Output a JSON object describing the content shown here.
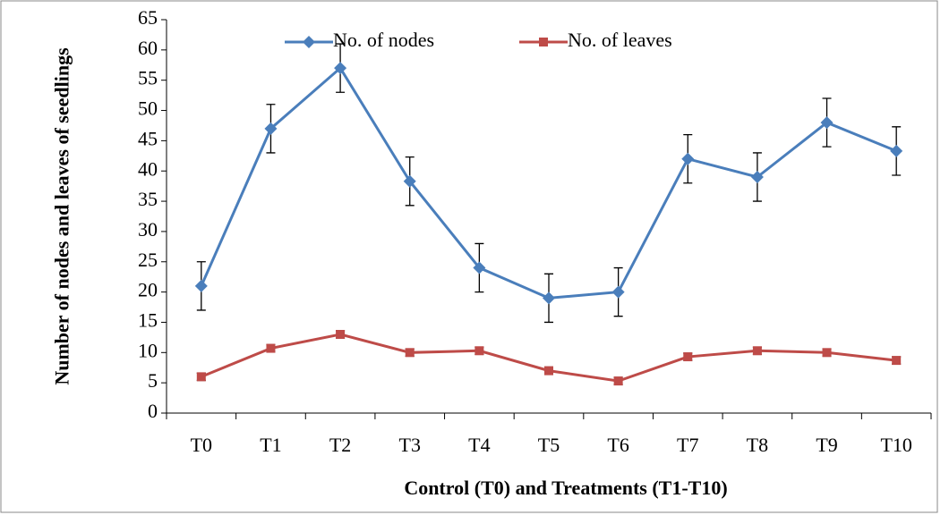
{
  "chart_data": {
    "type": "line",
    "xlabel": "Control (T0) and Treatments (T1-T10)",
    "ylabel": "Number of nodes and leaves of seedlings",
    "categories": [
      "T0",
      "T1",
      "T2",
      "T3",
      "T4",
      "T5",
      "T6",
      "T7",
      "T8",
      "T9",
      "T10"
    ],
    "series": [
      {
        "name": "No. of nodes",
        "color": "#4a7ebb",
        "marker": "diamond",
        "values": [
          21,
          47,
          57,
          38.3,
          24,
          19,
          20,
          42,
          39,
          48,
          43.3
        ],
        "errors": [
          4,
          4,
          4,
          4,
          4,
          4,
          4,
          4,
          4,
          4,
          4
        ]
      },
      {
        "name": "No. of leaves",
        "color": "#be4b48",
        "marker": "square",
        "values": [
          6,
          10.7,
          13,
          10,
          10.3,
          7,
          5.3,
          9.3,
          10.3,
          10,
          8.7
        ],
        "errors": [
          0.6,
          0.6,
          0.6,
          0.6,
          0.6,
          0.6,
          0.6,
          0.6,
          0.6,
          0.6,
          0.6
        ]
      }
    ],
    "ylim": [
      0,
      65
    ],
    "yticks": [
      0,
      5,
      10,
      15,
      20,
      25,
      30,
      35,
      40,
      45,
      50,
      55,
      60,
      65
    ],
    "grid": false,
    "legend": "top"
  }
}
